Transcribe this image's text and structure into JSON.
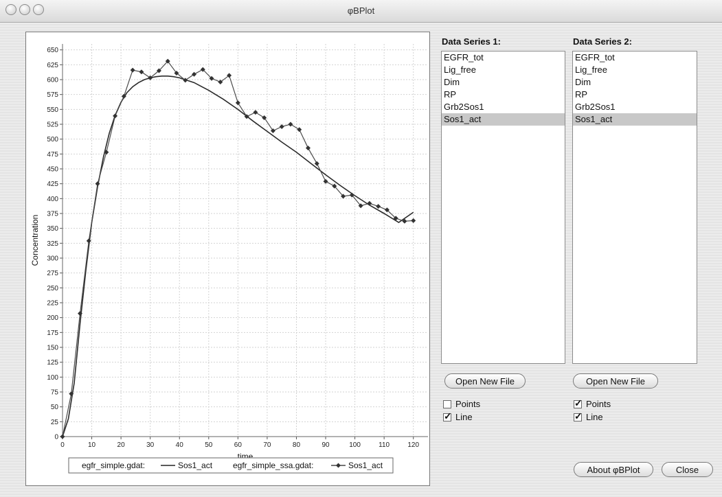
{
  "window": {
    "title": "φBPlot"
  },
  "series1": {
    "heading": "Data Series 1:",
    "items": [
      "EGFR_tot",
      "Lig_free",
      "Dim",
      "RP",
      "Grb2Sos1",
      "Sos1_act"
    ],
    "selected_index": 5,
    "open_label": "Open New File",
    "points_label": "Points",
    "points_checked": false,
    "line_label": "Line",
    "line_checked": true
  },
  "series2": {
    "heading": "Data Series 2:",
    "items": [
      "EGFR_tot",
      "Lig_free",
      "Dim",
      "RP",
      "Grb2Sos1",
      "Sos1_act"
    ],
    "selected_index": 5,
    "open_label": "Open New File",
    "points_label": "Points",
    "points_checked": true,
    "line_label": "Line",
    "line_checked": true
  },
  "buttons": {
    "about": "About φBPlot",
    "close": "Close"
  },
  "chart_data": {
    "type": "line",
    "xlabel": "time",
    "ylabel": "Concentration",
    "xlim": [
      0,
      125
    ],
    "ylim": [
      0,
      660
    ],
    "xticks": [
      0,
      10,
      20,
      30,
      40,
      50,
      60,
      70,
      80,
      90,
      100,
      110,
      120
    ],
    "yticks": [
      0,
      25,
      50,
      75,
      100,
      125,
      150,
      175,
      200,
      225,
      250,
      275,
      300,
      325,
      350,
      375,
      400,
      425,
      450,
      475,
      500,
      525,
      550,
      575,
      600,
      625,
      650
    ],
    "grid": true,
    "legend": {
      "file1": "egfr_simple.gdat:",
      "file2": "egfr_simple_ssa.gdat:",
      "series1_name": "Sos1_act",
      "series2_name": "Sos1_act"
    },
    "series": [
      {
        "name": "Sos1_act",
        "file": "egfr_simple.gdat",
        "style": "line",
        "x": [
          0,
          2,
          4,
          6,
          8,
          10,
          12,
          14,
          16,
          18,
          20,
          22,
          24,
          26,
          28,
          30,
          32,
          34,
          36,
          38,
          40,
          45,
          50,
          55,
          60,
          65,
          70,
          75,
          80,
          85,
          90,
          95,
          100,
          105,
          110,
          115,
          120
        ],
        "y": [
          0,
          30,
          90,
          190,
          280,
          360,
          420,
          470,
          510,
          540,
          562,
          578,
          588,
          595,
          600,
          603,
          605,
          606,
          606,
          605,
          603,
          595,
          582,
          567,
          550,
          531,
          513,
          495,
          478,
          459,
          440,
          422,
          405,
          389,
          375,
          360,
          377
        ]
      },
      {
        "name": "Sos1_act",
        "file": "egfr_simple_ssa.gdat",
        "style": "points+line",
        "x": [
          0,
          3,
          6,
          9,
          12,
          15,
          18,
          21,
          24,
          27,
          30,
          33,
          36,
          39,
          42,
          45,
          48,
          51,
          54,
          57,
          60,
          63,
          66,
          69,
          72,
          75,
          78,
          81,
          84,
          87,
          90,
          93,
          96,
          99,
          102,
          105,
          108,
          111,
          114,
          117,
          120
        ],
        "y": [
          0,
          72,
          207,
          329,
          425,
          478,
          539,
          572,
          616,
          613,
          603,
          615,
          631,
          611,
          599,
          609,
          617,
          602,
          596,
          607,
          561,
          538,
          545,
          536,
          514,
          521,
          525,
          516,
          485,
          459,
          429,
          421,
          404,
          406,
          388,
          392,
          387,
          381,
          367,
          362,
          363
        ]
      }
    ]
  }
}
